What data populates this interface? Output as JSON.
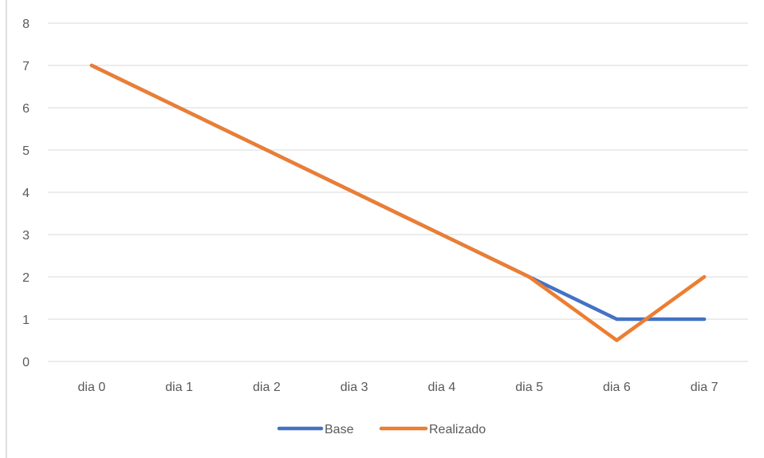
{
  "chart_data": {
    "type": "line",
    "title": "",
    "xlabel": "",
    "ylabel": "",
    "categories": [
      "dia 0",
      "dia 1",
      "dia 2",
      "dia 3",
      "dia 4",
      "dia 5",
      "dia 6",
      "dia 7"
    ],
    "ylim": [
      0,
      8
    ],
    "yticks": [
      "0",
      "1",
      "2",
      "3",
      "4",
      "5",
      "6",
      "7",
      "8"
    ],
    "grid": true,
    "legend_position": "bottom",
    "series": [
      {
        "name": "Base",
        "color": "#4472C4",
        "values": [
          7,
          6,
          5,
          4,
          3,
          2,
          1,
          1
        ]
      },
      {
        "name": "Realizado",
        "color": "#ED7D31",
        "values": [
          7,
          6,
          5,
          4,
          3,
          2,
          0.5,
          2
        ]
      }
    ]
  }
}
